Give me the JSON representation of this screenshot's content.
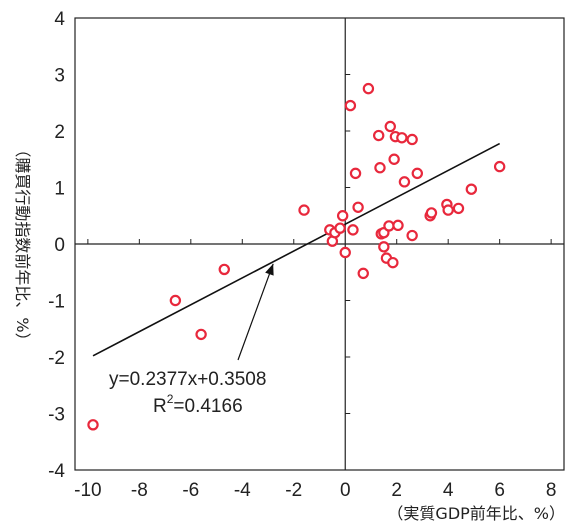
{
  "chart_data": {
    "type": "scatter",
    "xlim": [
      -10.5,
      8.5
    ],
    "ylim": [
      -4,
      4
    ],
    "x_ticks": [
      -10,
      -8,
      -6,
      -4,
      -2,
      0,
      2,
      4,
      6,
      8
    ],
    "x_tick_labels": [
      "-10",
      "-8",
      "-6",
      "-4",
      "-2",
      "0",
      "2",
      "4",
      "6",
      "8"
    ],
    "y_ticks": [
      -4,
      -3,
      -2,
      -1,
      0,
      1,
      2,
      3,
      4
    ],
    "y_tick_labels": [
      "-4",
      "-3",
      "-2",
      "-1",
      "0",
      "1",
      "2",
      "3",
      "4"
    ],
    "xlabel": "（実質GDP前年比、%）",
    "ylabel": "（購買行動指数前年比、%）",
    "grid": false,
    "marker_color": "#e8283c",
    "line_color": "#111111",
    "points": [
      {
        "x": -9.8,
        "y": -3.2
      },
      {
        "x": -6.6,
        "y": -1.0
      },
      {
        "x": -5.6,
        "y": -1.6
      },
      {
        "x": -4.7,
        "y": -0.45
      },
      {
        "x": -1.6,
        "y": 0.6
      },
      {
        "x": -0.6,
        "y": 0.25
      },
      {
        "x": -0.5,
        "y": 0.05
      },
      {
        "x": -0.4,
        "y": 0.2
      },
      {
        "x": -0.2,
        "y": 0.28
      },
      {
        "x": -0.1,
        "y": 0.5
      },
      {
        "x": 0.0,
        "y": -0.15
      },
      {
        "x": 0.2,
        "y": 2.45
      },
      {
        "x": 0.3,
        "y": 0.25
      },
      {
        "x": 0.4,
        "y": 1.25
      },
      {
        "x": 0.5,
        "y": 0.65
      },
      {
        "x": 0.7,
        "y": -0.52
      },
      {
        "x": 0.9,
        "y": 2.75
      },
      {
        "x": 1.3,
        "y": 1.92
      },
      {
        "x": 1.35,
        "y": 1.35
      },
      {
        "x": 1.4,
        "y": 0.18
      },
      {
        "x": 1.5,
        "y": 0.2
      },
      {
        "x": 1.5,
        "y": -0.05
      },
      {
        "x": 1.6,
        "y": -0.25
      },
      {
        "x": 1.7,
        "y": 0.32
      },
      {
        "x": 1.75,
        "y": 2.08
      },
      {
        "x": 1.85,
        "y": -0.33
      },
      {
        "x": 1.9,
        "y": 1.5
      },
      {
        "x": 1.95,
        "y": 1.9
      },
      {
        "x": 2.05,
        "y": 0.33
      },
      {
        "x": 2.2,
        "y": 1.88
      },
      {
        "x": 2.3,
        "y": 1.1
      },
      {
        "x": 2.6,
        "y": 1.85
      },
      {
        "x": 2.6,
        "y": 0.15
      },
      {
        "x": 2.8,
        "y": 1.25
      },
      {
        "x": 3.3,
        "y": 0.5
      },
      {
        "x": 3.35,
        "y": 0.55
      },
      {
        "x": 3.95,
        "y": 0.7
      },
      {
        "x": 4.0,
        "y": 0.6
      },
      {
        "x": 4.4,
        "y": 0.63
      },
      {
        "x": 4.9,
        "y": 0.97
      },
      {
        "x": 6.0,
        "y": 1.37
      }
    ],
    "trendline": {
      "slope": 0.2377,
      "intercept": 0.3508,
      "x_range": [
        -9.8,
        6.0
      ]
    },
    "annotation": {
      "equation_text": "y=0.2377x+0.3508",
      "r2_prefix": "R",
      "r2_superscript": "2",
      "r2_value": "=0.4166",
      "arrow_target_x": -2.8
    }
  }
}
